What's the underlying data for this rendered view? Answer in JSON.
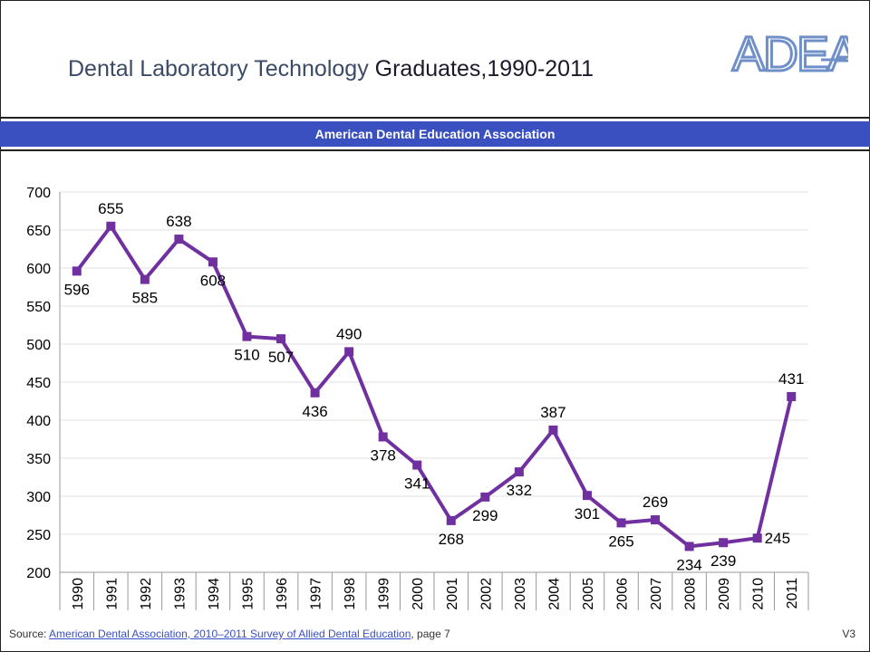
{
  "header": {
    "title_part1": "Dental Laboratory Technology",
    "title_part2": " Graduates,1990-2011",
    "logo_text": "ADEA",
    "banner_text": "American Dental Education Association"
  },
  "colors": {
    "line": "#7030a0",
    "banner": "#3a4fc0",
    "logo": "#6f8fc9"
  },
  "chart_data": {
    "type": "line",
    "categories": [
      "1990",
      "1991",
      "1992",
      "1993",
      "1994",
      "1995",
      "1996",
      "1997",
      "1998",
      "1999",
      "2000",
      "2001",
      "2002",
      "2003",
      "2004",
      "2005",
      "2006",
      "2007",
      "2008",
      "2009",
      "2010",
      "2011"
    ],
    "series": [
      {
        "values": [
          596,
          655,
          585,
          638,
          608,
          510,
          507,
          436,
          490,
          378,
          341,
          268,
          299,
          332,
          387,
          301,
          265,
          269,
          234,
          239,
          245,
          431
        ]
      }
    ],
    "ylim": [
      200,
      700
    ],
    "yticks": [
      200,
      250,
      300,
      350,
      400,
      450,
      500,
      550,
      600,
      650,
      700
    ],
    "grid": true,
    "marker": "square"
  },
  "footer": {
    "source_prefix": "Source: ",
    "source_link": "American Dental Association, 2010–2011 Survey of Allied Dental Education",
    "source_suffix": ", page 7",
    "version": "V3"
  }
}
